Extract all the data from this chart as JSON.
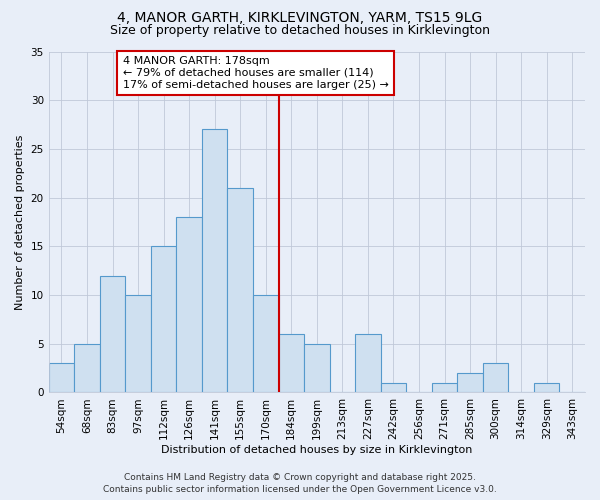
{
  "title": "4, MANOR GARTH, KIRKLEVINGTON, YARM, TS15 9LG",
  "subtitle": "Size of property relative to detached houses in Kirklevington",
  "xlabel": "Distribution of detached houses by size in Kirklevington",
  "ylabel": "Number of detached properties",
  "categories": [
    "54sqm",
    "68sqm",
    "83sqm",
    "97sqm",
    "112sqm",
    "126sqm",
    "141sqm",
    "155sqm",
    "170sqm",
    "184sqm",
    "199sqm",
    "213sqm",
    "227sqm",
    "242sqm",
    "256sqm",
    "271sqm",
    "285sqm",
    "300sqm",
    "314sqm",
    "329sqm",
    "343sqm"
  ],
  "values": [
    3,
    5,
    12,
    10,
    15,
    18,
    27,
    21,
    10,
    6,
    5,
    0,
    6,
    1,
    0,
    1,
    2,
    3,
    0,
    1,
    0
  ],
  "bar_color": "#cfe0f0",
  "bar_edge_color": "#5599cc",
  "vline_x_index": 8.5,
  "vline_color": "#cc0000",
  "annotation_text": "4 MANOR GARTH: 178sqm\n← 79% of detached houses are smaller (114)\n17% of semi-detached houses are larger (25) →",
  "annotation_box_color": "#ffffff",
  "annotation_box_edge_color": "#cc0000",
  "ylim": [
    0,
    35
  ],
  "yticks": [
    0,
    5,
    10,
    15,
    20,
    25,
    30,
    35
  ],
  "background_color": "#e8eef8",
  "plot_bg_color": "#e8eef8",
  "grid_color": "#c0c8d8",
  "footer_line1": "Contains HM Land Registry data © Crown copyright and database right 2025.",
  "footer_line2": "Contains public sector information licensed under the Open Government Licence v3.0.",
  "title_fontsize": 10,
  "subtitle_fontsize": 9,
  "axis_label_fontsize": 8,
  "tick_fontsize": 7.5,
  "annotation_fontsize": 8,
  "footer_fontsize": 6.5
}
